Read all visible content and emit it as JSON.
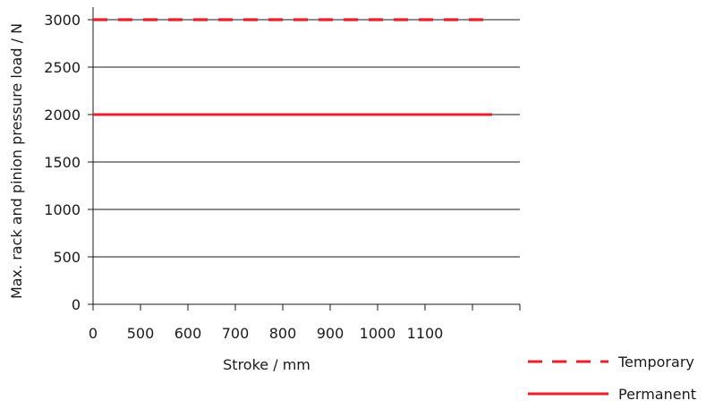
{
  "chart_data": {
    "type": "line",
    "title": "",
    "xlabel": "Stroke / mm",
    "ylabel": "Max. rack and pinion pressure load / N",
    "x_tick_labels": [
      "0",
      "500",
      "600",
      "700",
      "800",
      "900",
      "1000",
      "1100"
    ],
    "y_ticks": [
      0,
      500,
      1000,
      1500,
      2000,
      2500,
      3000
    ],
    "ylim": [
      0,
      3000
    ],
    "grid": "horizontal",
    "legend_position": "bottom-right",
    "series": [
      {
        "name": "Temporary",
        "style": "dashed",
        "color": "#e8202a",
        "x_start": "0",
        "x_end": "beyond 1100",
        "value": 3000
      },
      {
        "name": "Permanent",
        "style": "solid",
        "color": "#e8202a",
        "x_start": "0",
        "x_end": "beyond 1100",
        "value": 2000
      }
    ]
  }
}
